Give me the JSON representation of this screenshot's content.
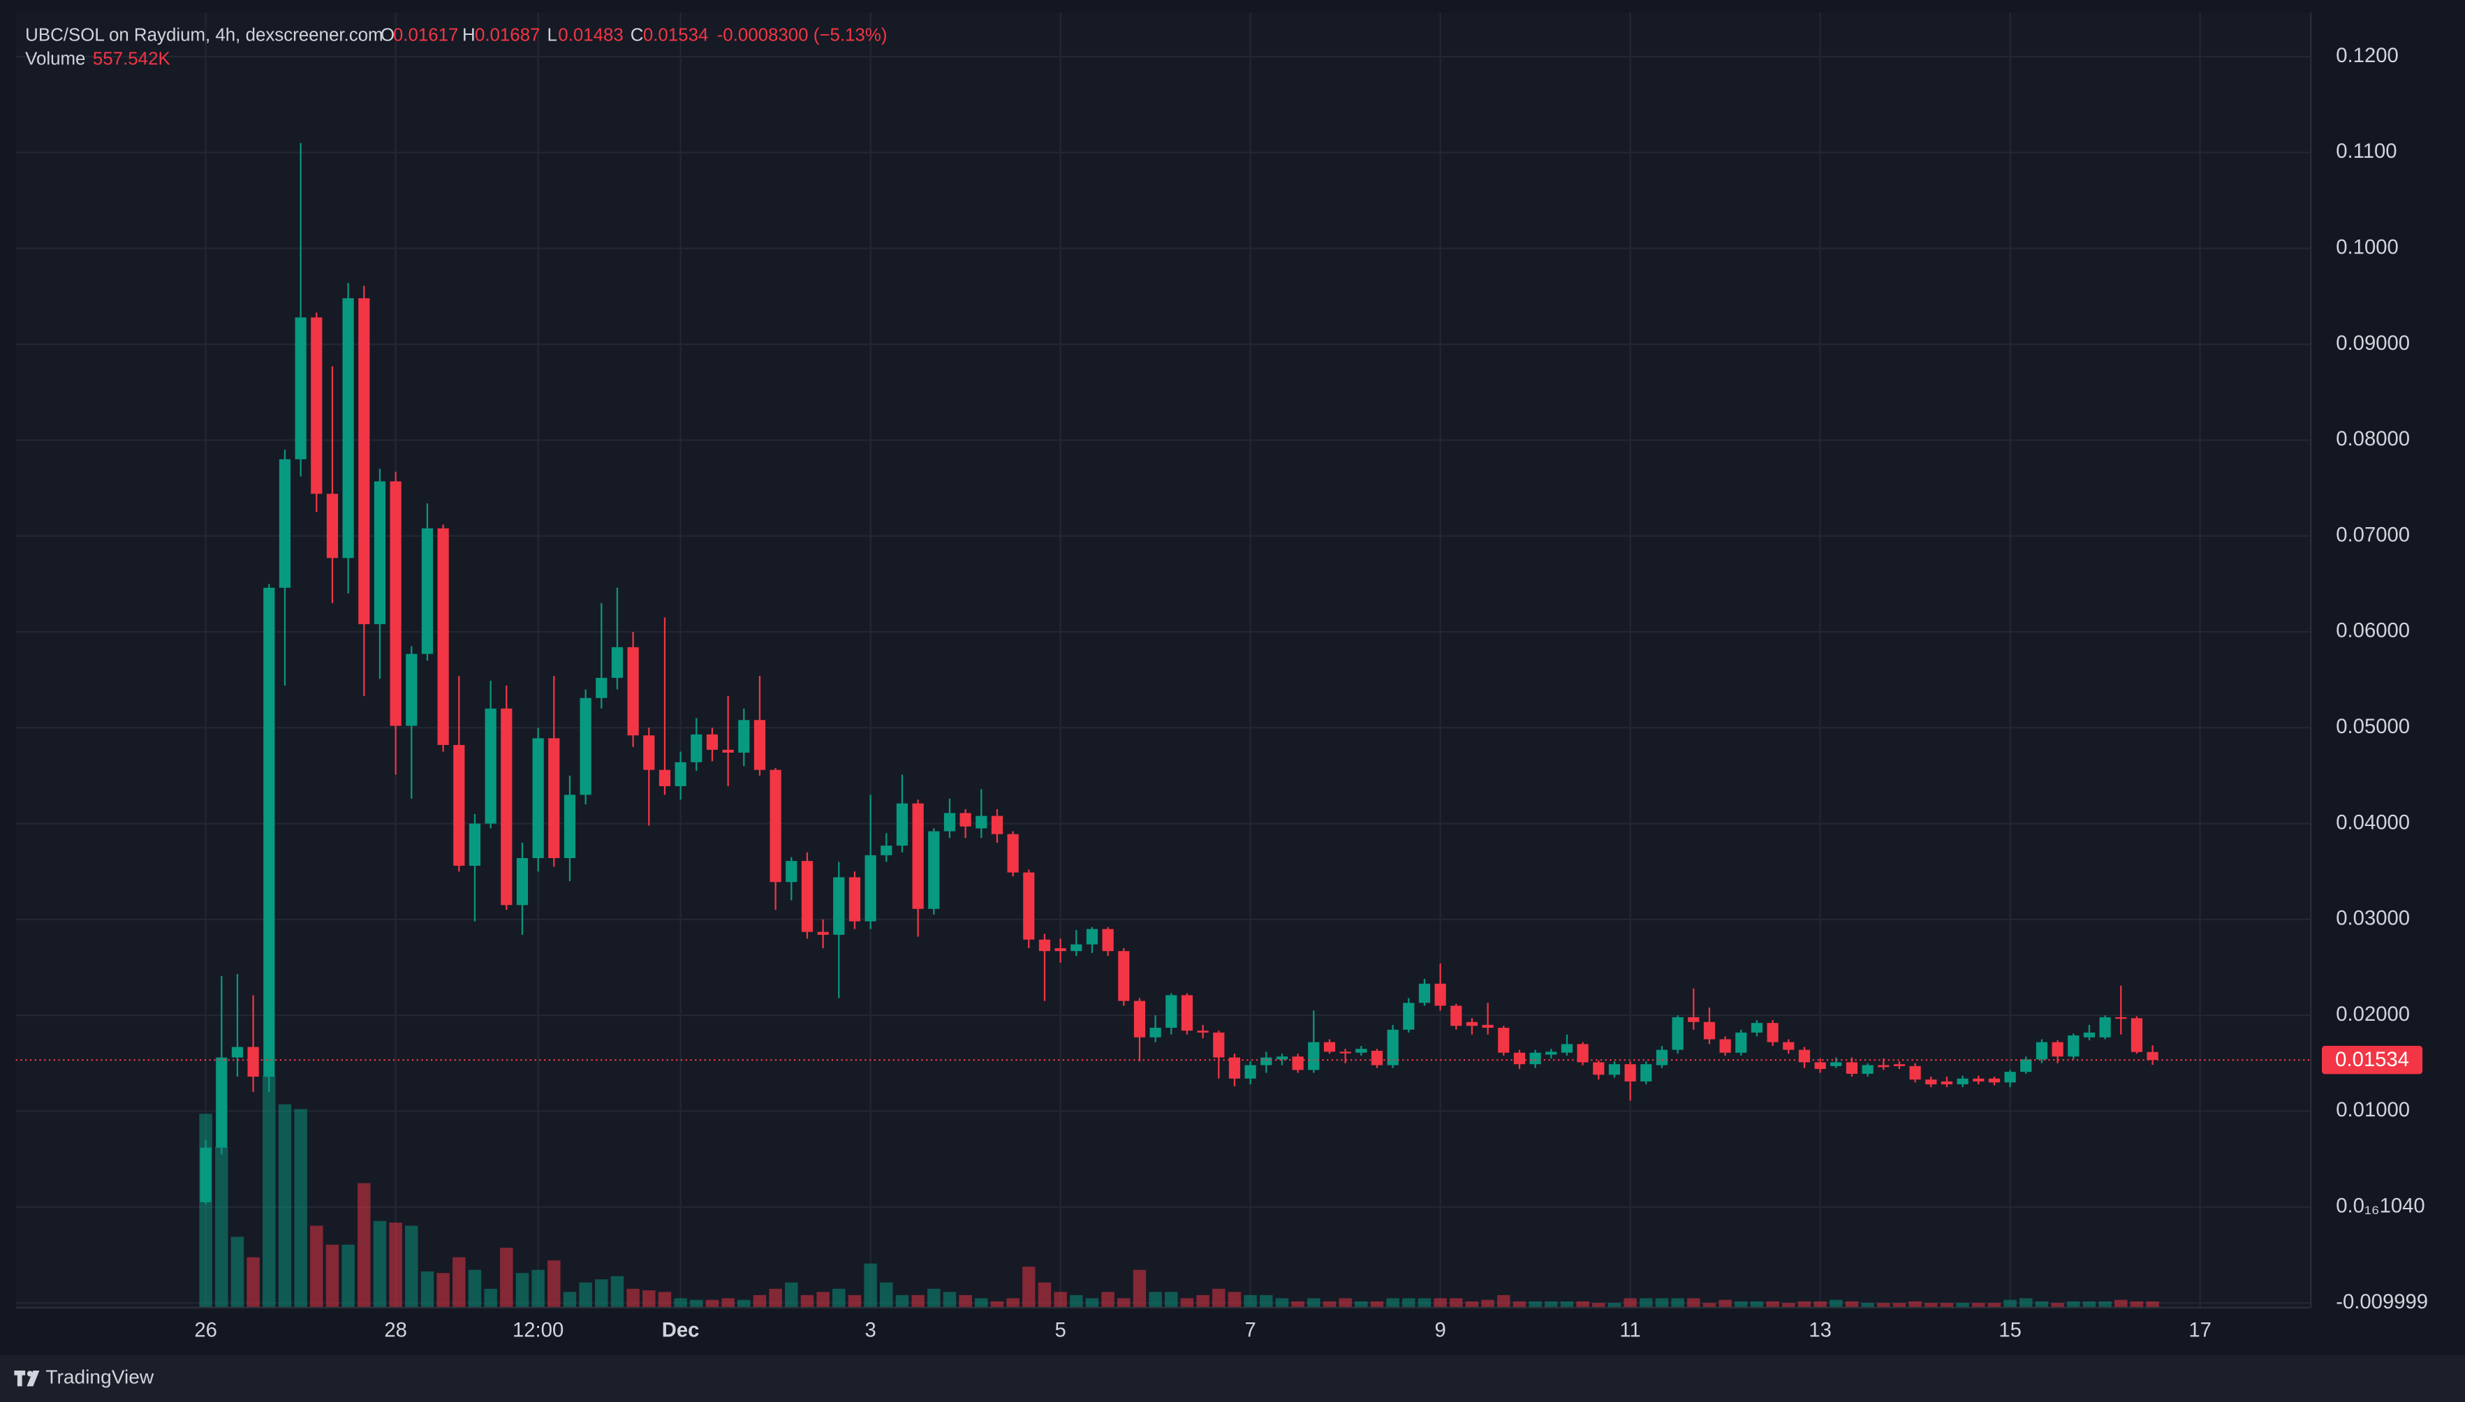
{
  "chart_data": {
    "type": "candlestick",
    "title": "UBC/SOL on Raydium, 4h, dexscreener.com",
    "ohlc_letters": [
      "O",
      "H",
      "L",
      "C"
    ],
    "change": "-0.0008300 (−5.13%)",
    "volume_title": "Volume",
    "last_volume_label": "557.542K",
    "footer": "TradingView",
    "colors": {
      "up": "#089981",
      "down": "#f23645"
    },
    "grid": true,
    "xlim": [
      -12,
      133
    ],
    "xticks": [
      {
        "value": 0,
        "label": "26"
      },
      {
        "value": 12,
        "label": "28"
      },
      {
        "value": 21,
        "label": "12:00"
      },
      {
        "value": 30,
        "label": "Dec",
        "bold": true
      },
      {
        "value": 42,
        "label": "3"
      },
      {
        "value": 54,
        "label": "5"
      },
      {
        "value": 66,
        "label": "7"
      },
      {
        "value": 78,
        "label": "9"
      },
      {
        "value": 90,
        "label": "11"
      },
      {
        "value": 102,
        "label": "13"
      },
      {
        "value": 114,
        "label": "15"
      },
      {
        "value": 126,
        "label": "17"
      }
    ],
    "ylim": [
      -0.0105,
      0.1246
    ],
    "yticks": [
      {
        "value": 0.12,
        "label": "0.1200"
      },
      {
        "value": 0.11,
        "label": "0.1100"
      },
      {
        "value": 0.1,
        "label": "0.1000"
      },
      {
        "value": 0.09,
        "label": "0.09000"
      },
      {
        "value": 0.08,
        "label": "0.08000"
      },
      {
        "value": 0.07,
        "label": "0.07000"
      },
      {
        "value": 0.06,
        "label": "0.06000"
      },
      {
        "value": 0.05,
        "label": "0.05000"
      },
      {
        "value": 0.04,
        "label": "0.04000"
      },
      {
        "value": 0.03,
        "label": "0.03000"
      },
      {
        "value": 0.02,
        "label": "0.02000"
      },
      {
        "value": 0.01,
        "label": "0.01000"
      },
      {
        "value": 1.04e-17,
        "label": "0.0₁₆1040"
      },
      -0.009999
    ],
    "vlim": [
      0,
      115000000
    ],
    "open": [
      0.0005,
      0.0062,
      0.0156,
      0.0167,
      0.0136,
      0.0646,
      0.078,
      0.0928,
      0.0744,
      0.0677,
      0.0948,
      0.0608,
      0.0757,
      0.0502,
      0.0577,
      0.0708,
      0.0482,
      0.0356,
      0.04,
      0.052,
      0.0315,
      0.0364,
      0.0489,
      0.0364,
      0.043,
      0.0531,
      0.0552,
      0.0584,
      0.0492,
      0.0456,
      0.0439,
      0.0464,
      0.0493,
      0.0477,
      0.0474,
      0.0508,
      0.0456,
      0.0339,
      0.0361,
      0.0287,
      0.0284,
      0.0344,
      0.0298,
      0.0367,
      0.0377,
      0.0421,
      0.0311,
      0.0392,
      0.0411,
      0.0395,
      0.0408,
      0.0389,
      0.0349,
      0.0279,
      0.027,
      0.0267,
      0.0274,
      0.029,
      0.0267,
      0.0215,
      0.0177,
      0.0187,
      0.0221,
      0.0184,
      0.0182,
      0.0156,
      0.0134,
      0.0148,
      0.0154,
      0.0157,
      0.0143,
      0.0172,
      0.0162,
      0.0161,
      0.0163,
      0.0148,
      0.0185,
      0.0213,
      0.0233,
      0.021,
      0.0193,
      0.019,
      0.0187,
      0.0161,
      0.0149,
      0.0159,
      0.0161,
      0.017,
      0.0151,
      0.0138,
      0.0149,
      0.0131,
      0.0148,
      0.0164,
      0.0198,
      0.0193,
      0.0175,
      0.0161,
      0.0182,
      0.0192,
      0.0172,
      0.0164,
      0.0151,
      0.0147,
      0.0151,
      0.0139,
      0.0148,
      0.0149,
      0.0147,
      0.0133,
      0.0131,
      0.0128,
      0.0134,
      0.0134,
      0.013,
      0.0141,
      0.0154,
      0.0172,
      0.0157,
      0.0177,
      0.0177,
      0.0198,
      0.0197,
      0.01617
    ],
    "high": [
      0.007,
      0.0241,
      0.0243,
      0.0221,
      0.065,
      0.079,
      0.111,
      0.0933,
      0.0877,
      0.0964,
      0.0961,
      0.077,
      0.0767,
      0.0585,
      0.0734,
      0.0712,
      0.0554,
      0.041,
      0.0549,
      0.0544,
      0.038,
      0.05,
      0.0554,
      0.045,
      0.054,
      0.063,
      0.0646,
      0.06,
      0.05,
      0.0615,
      0.0475,
      0.051,
      0.05,
      0.0533,
      0.052,
      0.0554,
      0.0458,
      0.0365,
      0.037,
      0.03,
      0.036,
      0.035,
      0.043,
      0.039,
      0.0451,
      0.0425,
      0.0395,
      0.0426,
      0.0415,
      0.0436,
      0.0415,
      0.0392,
      0.0352,
      0.0285,
      0.028,
      0.0289,
      0.0292,
      0.0292,
      0.027,
      0.0218,
      0.02,
      0.0223,
      0.0223,
      0.019,
      0.0184,
      0.016,
      0.0152,
      0.0162,
      0.016,
      0.016,
      0.0205,
      0.0175,
      0.0165,
      0.0168,
      0.0165,
      0.019,
      0.0218,
      0.0238,
      0.0254,
      0.0212,
      0.0197,
      0.0213,
      0.0189,
      0.0164,
      0.0164,
      0.0165,
      0.018,
      0.0172,
      0.0153,
      0.0152,
      0.0152,
      0.0152,
      0.0168,
      0.02,
      0.0228,
      0.0208,
      0.0178,
      0.0185,
      0.0195,
      0.0195,
      0.0175,
      0.0167,
      0.0155,
      0.0156,
      0.0156,
      0.015,
      0.0155,
      0.0152,
      0.015,
      0.0136,
      0.0136,
      0.0137,
      0.0137,
      0.0136,
      0.0143,
      0.0157,
      0.0175,
      0.0174,
      0.0181,
      0.019,
      0.02,
      0.0231,
      0.0199,
      0.01687
    ],
    "low": [
      0.0003,
      0.0055,
      0.0136,
      0.012,
      0.012,
      0.0544,
      0.0762,
      0.0725,
      0.063,
      0.064,
      0.0533,
      0.0551,
      0.0451,
      0.0426,
      0.057,
      0.0475,
      0.035,
      0.0298,
      0.0395,
      0.031,
      0.0284,
      0.035,
      0.0355,
      0.034,
      0.042,
      0.052,
      0.054,
      0.048,
      0.0398,
      0.043,
      0.0425,
      0.0455,
      0.0465,
      0.0439,
      0.046,
      0.045,
      0.031,
      0.032,
      0.028,
      0.027,
      0.0218,
      0.029,
      0.029,
      0.036,
      0.037,
      0.0282,
      0.0305,
      0.0385,
      0.0385,
      0.0385,
      0.038,
      0.0345,
      0.027,
      0.0215,
      0.0255,
      0.0262,
      0.0265,
      0.0262,
      0.021,
      0.0152,
      0.0172,
      0.018,
      0.018,
      0.0176,
      0.0134,
      0.0126,
      0.0128,
      0.014,
      0.0148,
      0.014,
      0.014,
      0.016,
      0.015,
      0.0158,
      0.0145,
      0.0145,
      0.0182,
      0.021,
      0.0205,
      0.0185,
      0.018,
      0.018,
      0.0158,
      0.0144,
      0.0145,
      0.0155,
      0.0158,
      0.0148,
      0.0133,
      0.0135,
      0.0111,
      0.0128,
      0.0145,
      0.016,
      0.0185,
      0.017,
      0.0158,
      0.0158,
      0.0178,
      0.0168,
      0.016,
      0.0145,
      0.014,
      0.0145,
      0.0136,
      0.0136,
      0.0143,
      0.0144,
      0.013,
      0.0125,
      0.0125,
      0.0125,
      0.0128,
      0.0127,
      0.0125,
      0.0139,
      0.015,
      0.015,
      0.0154,
      0.0174,
      0.0175,
      0.018,
      0.016,
      0.01483
    ],
    "close": [
      0.0062,
      0.0156,
      0.0167,
      0.0136,
      0.0646,
      0.078,
      0.0928,
      0.0744,
      0.0677,
      0.0948,
      0.0608,
      0.0757,
      0.0502,
      0.0577,
      0.0708,
      0.0482,
      0.0356,
      0.04,
      0.052,
      0.0315,
      0.0364,
      0.0489,
      0.0364,
      0.043,
      0.0531,
      0.0552,
      0.0584,
      0.0492,
      0.0456,
      0.0439,
      0.0464,
      0.0493,
      0.0477,
      0.0474,
      0.0508,
      0.0456,
      0.0339,
      0.0361,
      0.0287,
      0.0284,
      0.0344,
      0.0298,
      0.0367,
      0.0377,
      0.0421,
      0.0311,
      0.0392,
      0.0411,
      0.0397,
      0.0408,
      0.0389,
      0.0349,
      0.0279,
      0.0267,
      0.0267,
      0.0274,
      0.029,
      0.0267,
      0.0215,
      0.0177,
      0.0187,
      0.0221,
      0.0184,
      0.0182,
      0.0156,
      0.0134,
      0.0148,
      0.0156,
      0.0157,
      0.0143,
      0.0172,
      0.0162,
      0.0161,
      0.0165,
      0.0148,
      0.0185,
      0.0213,
      0.0233,
      0.021,
      0.0189,
      0.0189,
      0.0187,
      0.0161,
      0.0149,
      0.0161,
      0.0162,
      0.017,
      0.0151,
      0.0138,
      0.0149,
      0.0131,
      0.0149,
      0.0164,
      0.0198,
      0.0193,
      0.0175,
      0.0161,
      0.0182,
      0.0192,
      0.0172,
      0.0164,
      0.0151,
      0.0144,
      0.0151,
      0.0139,
      0.0148,
      0.0146,
      0.0147,
      0.0133,
      0.0128,
      0.0128,
      0.0134,
      0.0131,
      0.013,
      0.0141,
      0.0154,
      0.0172,
      0.0157,
      0.0179,
      0.0182,
      0.0198,
      0.0197,
      0.01617,
      0.01534
    ],
    "volume": [
      17220000,
      14280000,
      6300000,
      4480000,
      20580000,
      18060000,
      17640000,
      7280000,
      5600000,
      5600000,
      11060000,
      7700000,
      7560000,
      7280000,
      3220000,
      3080000,
      4480000,
      3360000,
      1680000,
      5320000,
      3080000,
      3360000,
      4200000,
      1400000,
      2240000,
      2520000,
      2800000,
      1680000,
      1540000,
      1400000,
      840000,
      700000,
      700000,
      840000,
      700000,
      1120000,
      1680000,
      2240000,
      1120000,
      1400000,
      1680000,
      1120000,
      3920000,
      2240000,
      1120000,
      1120000,
      1680000,
      1400000,
      1120000,
      840000,
      560000,
      840000,
      3640000,
      2240000,
      1400000,
      1120000,
      840000,
      1400000,
      840000,
      3360000,
      1400000,
      1400000,
      840000,
      1120000,
      1680000,
      1400000,
      1120000,
      1120000,
      840000,
      560000,
      840000,
      560000,
      840000,
      560000,
      560000,
      840000,
      840000,
      840000,
      840000,
      840000,
      560000,
      700000,
      1120000,
      560000,
      560000,
      560000,
      560000,
      560000,
      420000,
      420000,
      840000,
      840000,
      840000,
      840000,
      840000,
      420000,
      700000,
      560000,
      560000,
      560000,
      420000,
      560000,
      560000,
      700000,
      560000,
      420000,
      420000,
      420000,
      560000,
      420000,
      420000,
      420000,
      420000,
      420000,
      700000,
      840000,
      560000,
      420000,
      560000,
      560000,
      560000,
      700000,
      560000,
      557542
    ]
  }
}
